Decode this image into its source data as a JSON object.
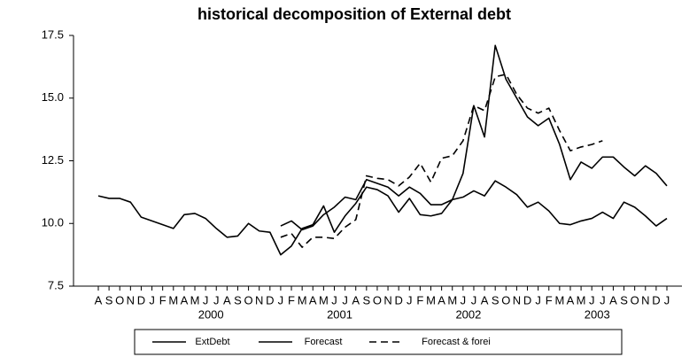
{
  "chart_data": {
    "type": "line",
    "title": "historical decomposition of External debt",
    "categories": [
      "A",
      "S",
      "O",
      "N",
      "D",
      "J",
      "F",
      "M",
      "A",
      "M",
      "J",
      "J",
      "A",
      "S",
      "O",
      "N",
      "D",
      "J",
      "F",
      "M",
      "A",
      "M",
      "J",
      "J",
      "A",
      "S",
      "O",
      "N",
      "D",
      "J",
      "F",
      "M",
      "A",
      "M",
      "J",
      "J",
      "A",
      "S",
      "O",
      "N",
      "D",
      "J",
      "F",
      "M",
      "A",
      "M",
      "J",
      "J",
      "A",
      "S",
      "O",
      "N",
      "D",
      "J"
    ],
    "year_labels": [
      "2000",
      "2001",
      "2002",
      "2003"
    ],
    "ylim": [
      7.5,
      17.5
    ],
    "yticks": [
      7.5,
      {
        "value": 10.0,
        "label": "10.0"
      },
      12.5,
      {
        "value": 15.0,
        "label": "15.0"
      },
      17.5
    ],
    "grid": false,
    "legend": "bottom",
    "series": [
      {
        "name": "ExtDebt",
        "color": "#000000",
        "line_style": "solid",
        "values": [
          11.1,
          11.0,
          11.0,
          10.85,
          10.25,
          10.1,
          9.95,
          9.8,
          10.35,
          10.4,
          10.2,
          9.8,
          9.45,
          9.5,
          10.0,
          9.7,
          9.65,
          8.75,
          9.1,
          9.8,
          9.95,
          10.7,
          9.65,
          10.3,
          10.8,
          11.45,
          11.35,
          11.1,
          10.45,
          11.0,
          10.35,
          10.3,
          10.4,
          10.95,
          12.0,
          14.7,
          13.45,
          17.1,
          15.75,
          15.0,
          14.25,
          13.9,
          14.2,
          13.15,
          11.75,
          12.45,
          12.2,
          12.65,
          12.65,
          12.25,
          11.9,
          12.3,
          12.0,
          11.5
        ]
      },
      {
        "name": "Forecast",
        "color": "#000000",
        "line_style": "solid",
        "values": [
          null,
          null,
          null,
          null,
          null,
          null,
          null,
          null,
          null,
          null,
          null,
          null,
          null,
          null,
          null,
          null,
          null,
          9.9,
          10.1,
          9.75,
          9.9,
          10.35,
          10.65,
          11.05,
          10.95,
          11.75,
          11.6,
          11.45,
          11.1,
          11.45,
          11.2,
          10.75,
          10.75,
          10.95,
          11.05,
          11.3,
          11.1,
          11.7,
          11.45,
          11.15,
          10.65,
          10.85,
          10.5,
          10.0,
          9.95,
          10.1,
          10.2,
          10.45,
          10.2,
          10.85,
          10.65,
          10.3,
          9.9,
          10.2
        ]
      },
      {
        "name": "Forecast & forei",
        "color": "#000000",
        "line_style": "dashed",
        "values": [
          null,
          null,
          null,
          null,
          null,
          null,
          null,
          null,
          null,
          null,
          null,
          null,
          null,
          null,
          null,
          null,
          null,
          9.45,
          9.6,
          9.05,
          9.45,
          9.45,
          9.4,
          9.85,
          10.15,
          11.9,
          11.8,
          11.75,
          11.5,
          11.85,
          12.4,
          11.65,
          12.6,
          12.7,
          13.3,
          14.7,
          14.5,
          15.85,
          15.95,
          15.15,
          14.6,
          14.4,
          14.6,
          13.7,
          12.9,
          13.05,
          13.15,
          13.3,
          null,
          null,
          null,
          null,
          null,
          null
        ]
      }
    ]
  }
}
